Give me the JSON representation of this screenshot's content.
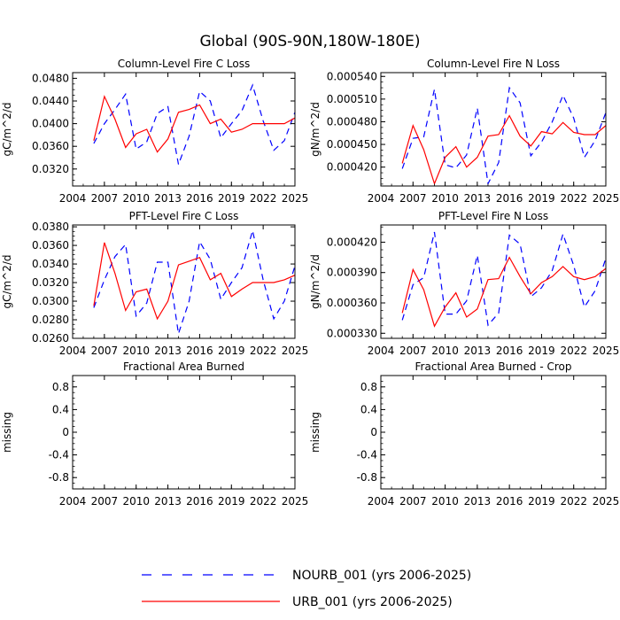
{
  "figure_title": "Global (90S-90N,180W-180E)",
  "legend": {
    "entries": [
      {
        "label": "NOURB_001 (yrs 2006-2025)",
        "color": "#0000ff",
        "dash": "dashed"
      },
      {
        "label": "URB_001 (yrs 2006-2025)",
        "color": "#ff0000",
        "dash": "solid"
      }
    ]
  },
  "colors": {
    "NOURB_001": "#0000ff",
    "URB_001": "#ff0000",
    "axis": "#000000",
    "background": "#ffffff"
  },
  "chart_data": [
    {
      "id": "col-fire-c",
      "type": "line",
      "title": "Column-Level Fire C Loss",
      "ylabel": "gC/m^2/d",
      "xlim": [
        2004,
        2025
      ],
      "ylim": [
        0.029,
        0.049
      ],
      "xticks": [
        2004,
        2007,
        2010,
        2013,
        2016,
        2019,
        2022,
        2025
      ],
      "yticks": [
        0.032,
        0.036,
        0.04,
        0.044,
        0.048
      ],
      "ytick_labels": [
        "0.0320",
        "0.0360",
        "0.0400",
        "0.0440",
        "0.0480"
      ],
      "x": [
        2006,
        2007,
        2008,
        2009,
        2010,
        2011,
        2012,
        2013,
        2014,
        2015,
        2016,
        2017,
        2018,
        2019,
        2020,
        2021,
        2022,
        2023,
        2024,
        2025
      ],
      "series": [
        {
          "name": "NOURB_001",
          "values": [
            0.0365,
            0.04,
            0.0425,
            0.0452,
            0.0355,
            0.0368,
            0.0418,
            0.043,
            0.0328,
            0.0378,
            0.0457,
            0.044,
            0.0375,
            0.04,
            0.0423,
            0.0468,
            0.0405,
            0.0353,
            0.037,
            0.042
          ]
        },
        {
          "name": "URB_001",
          "values": [
            0.037,
            0.0448,
            0.0408,
            0.0358,
            0.0382,
            0.039,
            0.035,
            0.0373,
            0.042,
            0.0425,
            0.0433,
            0.04,
            0.0408,
            0.0385,
            0.039,
            0.04,
            0.04,
            0.04,
            0.04,
            0.041
          ]
        }
      ]
    },
    {
      "id": "col-fire-n",
      "type": "line",
      "title": "Column-Level Fire N Loss",
      "ylabel": "gN/m^2/d",
      "xlim": [
        2004,
        2025
      ],
      "ylim": [
        0.000395,
        0.000545
      ],
      "xticks": [
        2004,
        2007,
        2010,
        2013,
        2016,
        2019,
        2022,
        2025
      ],
      "yticks": [
        0.00042,
        0.00045,
        0.00048,
        0.00051,
        0.00054
      ],
      "ytick_labels": [
        "0.000420",
        "0.000450",
        "0.000480",
        "0.000510",
        "0.000540"
      ],
      "x": [
        2006,
        2007,
        2008,
        2009,
        2010,
        2011,
        2012,
        2013,
        2014,
        2015,
        2016,
        2017,
        2018,
        2019,
        2020,
        2021,
        2022,
        2023,
        2024,
        2025
      ],
      "series": [
        {
          "name": "NOURB_001",
          "values": [
            0.000418,
            0.000458,
            0.00046,
            0.000523,
            0.000423,
            0.000419,
            0.000436,
            0.000498,
            0.000398,
            0.000426,
            0.000525,
            0.000505,
            0.000435,
            0.000453,
            0.00048,
            0.000515,
            0.000485,
            0.000433,
            0.000455,
            0.000492
          ]
        },
        {
          "name": "URB_001",
          "values": [
            0.000425,
            0.000475,
            0.000443,
            0.000398,
            0.000433,
            0.000447,
            0.00042,
            0.000433,
            0.000461,
            0.000463,
            0.000488,
            0.000461,
            0.000448,
            0.000467,
            0.000464,
            0.000479,
            0.000466,
            0.000463,
            0.000463,
            0.000475
          ]
        }
      ]
    },
    {
      "id": "pft-fire-c",
      "type": "line",
      "title": "PFT-Level Fire C Loss",
      "ylabel": "gC/m^2/d",
      "xlim": [
        2004,
        2025
      ],
      "ylim": [
        0.026,
        0.0382
      ],
      "xticks": [
        2004,
        2007,
        2010,
        2013,
        2016,
        2019,
        2022,
        2025
      ],
      "yticks": [
        0.026,
        0.028,
        0.03,
        0.032,
        0.034,
        0.036,
        0.038
      ],
      "ytick_labels": [
        "0.0260",
        "0.0280",
        "0.0300",
        "0.0320",
        "0.0340",
        "0.0360",
        "0.0380"
      ],
      "x": [
        2006,
        2007,
        2008,
        2009,
        2010,
        2011,
        2012,
        2013,
        2014,
        2015,
        2016,
        2017,
        2018,
        2019,
        2020,
        2021,
        2022,
        2023,
        2024,
        2025
      ],
      "series": [
        {
          "name": "NOURB_001",
          "values": [
            0.0293,
            0.0323,
            0.0348,
            0.0361,
            0.0284,
            0.0298,
            0.0342,
            0.0342,
            0.0265,
            0.03,
            0.0364,
            0.0345,
            0.0302,
            0.032,
            0.0336,
            0.0376,
            0.0323,
            0.0281,
            0.03,
            0.0338
          ]
        },
        {
          "name": "URB_001",
          "values": [
            0.0295,
            0.0363,
            0.033,
            0.029,
            0.031,
            0.0313,
            0.0281,
            0.03,
            0.0339,
            0.0343,
            0.0347,
            0.0323,
            0.033,
            0.0305,
            0.0313,
            0.032,
            0.032,
            0.032,
            0.0323,
            0.0328
          ]
        }
      ]
    },
    {
      "id": "pft-fire-n",
      "type": "line",
      "title": "PFT-Level Fire N Loss",
      "ylabel": "gN/m^2/d",
      "xlim": [
        2004,
        2025
      ],
      "ylim": [
        0.000325,
        0.000437
      ],
      "xticks": [
        2004,
        2007,
        2010,
        2013,
        2016,
        2019,
        2022,
        2025
      ],
      "yticks": [
        0.00033,
        0.00036,
        0.00039,
        0.00042
      ],
      "ytick_labels": [
        "0.000330",
        "0.000360",
        "0.000390",
        "0.000420"
      ],
      "x": [
        2006,
        2007,
        2008,
        2009,
        2010,
        2011,
        2012,
        2013,
        2014,
        2015,
        2016,
        2017,
        2018,
        2019,
        2020,
        2021,
        2022,
        2023,
        2024,
        2025
      ],
      "series": [
        {
          "name": "NOURB_001",
          "values": [
            0.000343,
            0.000378,
            0.000385,
            0.00043,
            0.000349,
            0.000349,
            0.000362,
            0.000407,
            0.000338,
            0.00035,
            0.000427,
            0.000418,
            0.000366,
            0.000375,
            0.000392,
            0.000428,
            0.000397,
            0.000356,
            0.000372,
            0.000404
          ]
        },
        {
          "name": "URB_001",
          "values": [
            0.00035,
            0.000393,
            0.000373,
            0.000337,
            0.000356,
            0.00037,
            0.000346,
            0.000354,
            0.000383,
            0.000384,
            0.000405,
            0.000386,
            0.000369,
            0.00038,
            0.000386,
            0.000396,
            0.000386,
            0.000383,
            0.000386,
            0.000394
          ]
        }
      ]
    },
    {
      "id": "frac-area",
      "type": "line",
      "title": "Fractional Area Burned",
      "ylabel": "missing",
      "xlim": [
        2004,
        2025
      ],
      "ylim": [
        -1.0,
        1.0
      ],
      "xticks": [
        2004,
        2007,
        2010,
        2013,
        2016,
        2019,
        2022,
        2025
      ],
      "yticks": [
        -0.8,
        -0.4,
        0,
        0.4,
        0.8
      ],
      "ytick_labels": [
        "-0.8",
        "-0.4",
        "0",
        "0.4",
        "0.8"
      ],
      "x": [],
      "series": []
    },
    {
      "id": "frac-area-crop",
      "type": "line",
      "title": "Fractional Area Burned - Crop",
      "ylabel": "missing",
      "xlim": [
        2004,
        2025
      ],
      "ylim": [
        -1.0,
        1.0
      ],
      "xticks": [
        2004,
        2007,
        2010,
        2013,
        2016,
        2019,
        2022,
        2025
      ],
      "yticks": [
        -0.8,
        -0.4,
        0,
        0.4,
        0.8
      ],
      "ytick_labels": [
        "-0.8",
        "-0.4",
        "0",
        "0.4",
        "0.8"
      ],
      "x": [],
      "series": []
    }
  ]
}
